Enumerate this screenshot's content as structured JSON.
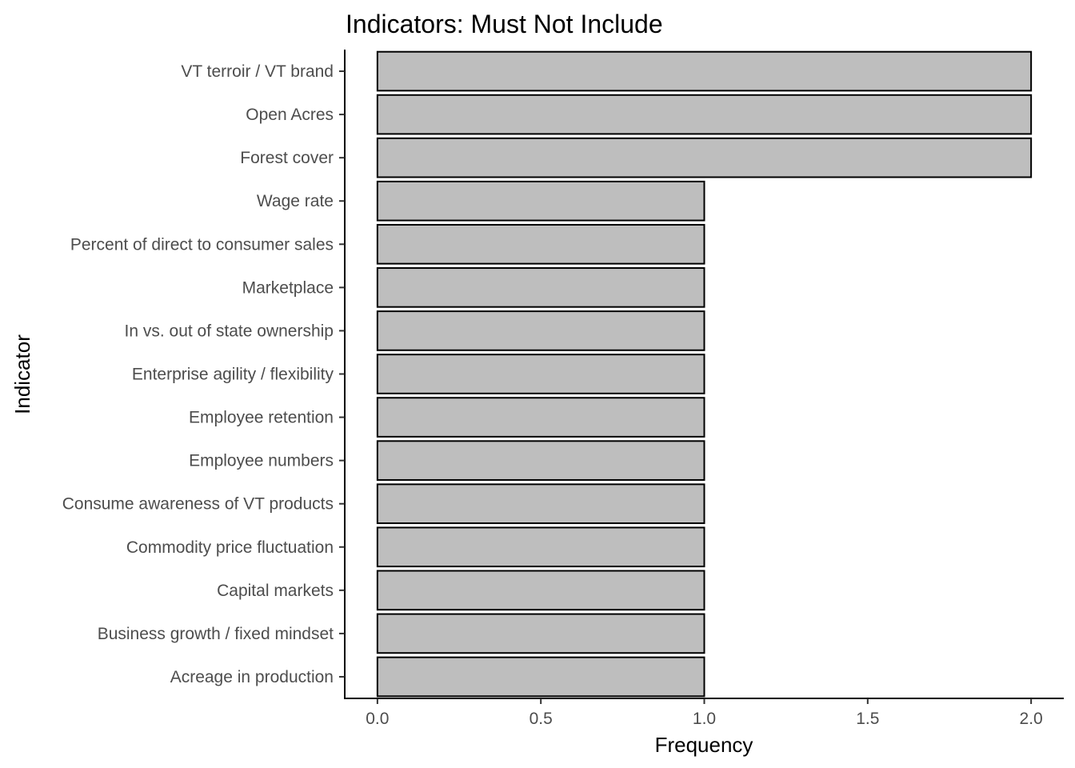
{
  "chart_data": {
    "type": "bar",
    "orientation": "horizontal",
    "title": "Indicators: Must Not Include",
    "xlabel": "Frequency",
    "ylabel": "Indicator",
    "categories": [
      "VT terroir / VT brand",
      "Open Acres",
      "Forest cover",
      "Wage rate",
      "Percent of direct to consumer sales",
      "Marketplace",
      "In vs. out of state ownership",
      "Enterprise agility / flexibility",
      "Employee retention",
      "Employee numbers",
      "Consume awareness of VT products",
      "Commodity price fluctuation",
      "Capital markets",
      "Business growth / fixed mindset",
      "Acreage in production"
    ],
    "values": [
      2,
      2,
      2,
      1,
      1,
      1,
      1,
      1,
      1,
      1,
      1,
      1,
      1,
      1,
      1
    ],
    "xlim": [
      -0.1,
      2.1
    ],
    "x_ticks": [
      0.0,
      0.5,
      1.0,
      1.5,
      2.0
    ],
    "x_tick_labels": [
      "0.0",
      "0.5",
      "1.0",
      "1.5",
      "2.0"
    ],
    "grid": false,
    "legend": "none",
    "colors": {
      "bar_fill": "#bebebe",
      "bar_stroke": "#000000"
    }
  }
}
